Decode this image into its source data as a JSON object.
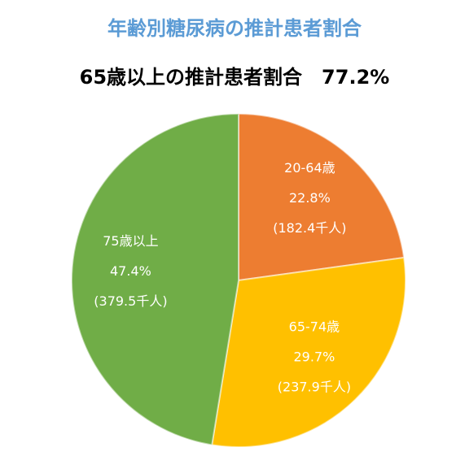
{
  "chart_data": {
    "type": "pie",
    "title": "年齢別糖尿病の推計患者割合",
    "subtitle": "65歳以上の推計患者割合　77.2%",
    "categories": [
      "20-64歳",
      "65-74歳",
      "75歳以上"
    ],
    "values": [
      22.8,
      29.7,
      47.4
    ],
    "value_labels": [
      "22.8%",
      "29.7%",
      "47.4%"
    ],
    "count_labels": [
      "(182.4千人)",
      "(237.9千人)",
      "(379.5千人)"
    ],
    "colors": [
      "#ed7d31",
      "#ffc000",
      "#70ad47"
    ],
    "title_color": "#5b9bd5"
  }
}
